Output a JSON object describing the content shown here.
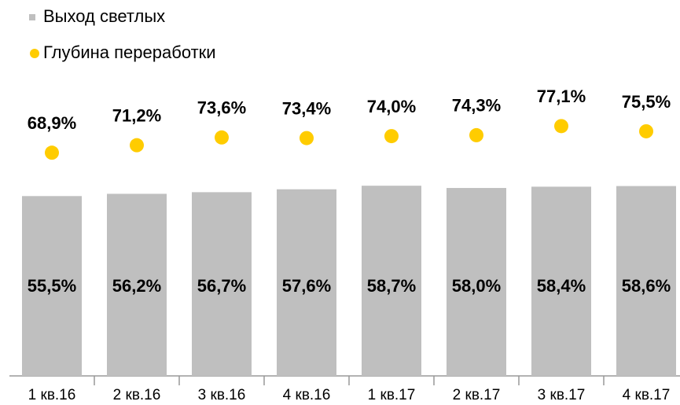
{
  "chart_data": {
    "type": "bar",
    "categories": [
      "1 кв.16",
      "2 кв.16",
      "3 кв.16",
      "4 кв.16",
      "1 кв.17",
      "2 кв.17",
      "3 кв.17",
      "4 кв.17"
    ],
    "series": [
      {
        "name": "Выход светлых",
        "type": "bar",
        "color": "#bfbfbf",
        "values": [
          55.5,
          56.2,
          56.7,
          57.6,
          58.7,
          58.0,
          58.4,
          58.6
        ],
        "value_labels": [
          "55,5%",
          "56,2%",
          "56,7%",
          "57,6%",
          "58,7%",
          "58,0%",
          "58,4%",
          "58,6%"
        ]
      },
      {
        "name": "Глубина переработки",
        "type": "scatter",
        "color": "#ffcc00",
        "values": [
          68.9,
          71.2,
          73.6,
          73.4,
          74.0,
          74.3,
          77.1,
          75.5
        ],
        "value_labels": [
          "68,9%",
          "71,2%",
          "73,6%",
          "73,4%",
          "74,0%",
          "74,3%",
          "77,1%",
          "75,5%"
        ]
      }
    ],
    "ylim": [
      0,
      100
    ]
  }
}
